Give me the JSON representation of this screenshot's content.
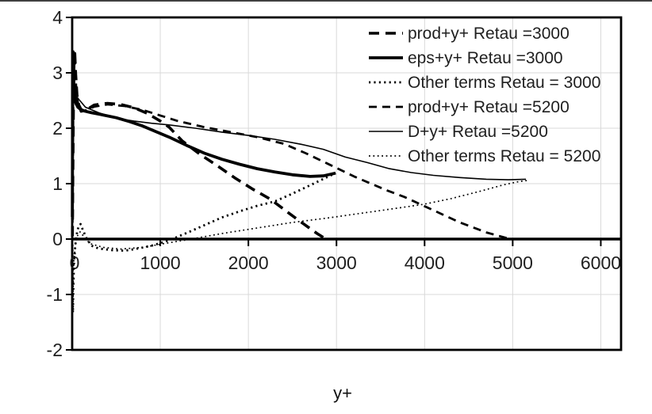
{
  "page": {
    "background": "#ffffff"
  },
  "colors": {
    "line": "#000000",
    "grid": "#d9d9d9",
    "border": "#000000",
    "text": "#1f1f1f"
  },
  "chart_data": {
    "type": "line",
    "title": "",
    "xlabel": "y+",
    "ylabel": "",
    "xlim": [
      0,
      6230
    ],
    "ylim": [
      -2,
      4
    ],
    "x_ticks": [
      0,
      1000,
      2000,
      3000,
      4000,
      5000,
      6000
    ],
    "y_ticks": [
      4,
      3,
      2,
      1,
      0,
      -1,
      -2
    ],
    "grid": true,
    "legend_position": "top-right-inside",
    "series": [
      {
        "name": "prod+y+ Retau =3000",
        "style": "dash-thick",
        "points": [
          [
            3,
            0.05
          ],
          [
            8,
            1.2
          ],
          [
            15,
            2.6
          ],
          [
            22,
            3.25
          ],
          [
            30,
            3.35
          ],
          [
            40,
            2.98
          ],
          [
            55,
            2.6
          ],
          [
            75,
            2.42
          ],
          [
            110,
            2.31
          ],
          [
            160,
            2.33
          ],
          [
            250,
            2.42
          ],
          [
            400,
            2.45
          ],
          [
            550,
            2.43
          ],
          [
            700,
            2.37
          ],
          [
            850,
            2.27
          ],
          [
            1000,
            2.13
          ],
          [
            1100,
            2.02
          ],
          [
            1250,
            1.77
          ],
          [
            1450,
            1.53
          ],
          [
            1650,
            1.32
          ],
          [
            1850,
            1.1
          ],
          [
            2050,
            0.9
          ],
          [
            2250,
            0.72
          ],
          [
            2450,
            0.48
          ],
          [
            2630,
            0.27
          ],
          [
            2780,
            0.1
          ],
          [
            2870,
            0.01
          ]
        ]
      },
      {
        "name": "eps+y+ Retau =3000",
        "style": "solid-thick",
        "points": [
          [
            2,
            0.4
          ],
          [
            4,
            1.6
          ],
          [
            6,
            2.7
          ],
          [
            8,
            3.15
          ],
          [
            10,
            3.38
          ],
          [
            14,
            3.08
          ],
          [
            20,
            2.73
          ],
          [
            30,
            2.53
          ],
          [
            45,
            2.44
          ],
          [
            65,
            2.38
          ],
          [
            95,
            2.34
          ],
          [
            140,
            2.31
          ],
          [
            220,
            2.28
          ],
          [
            350,
            2.24
          ],
          [
            500,
            2.19
          ],
          [
            650,
            2.12
          ],
          [
            800,
            2.04
          ],
          [
            950,
            1.94
          ],
          [
            1100,
            1.84
          ],
          [
            1300,
            1.69
          ],
          [
            1500,
            1.55
          ],
          [
            1700,
            1.44
          ],
          [
            1900,
            1.35
          ],
          [
            2100,
            1.27
          ],
          [
            2300,
            1.21
          ],
          [
            2500,
            1.16
          ],
          [
            2700,
            1.13
          ],
          [
            2850,
            1.14
          ],
          [
            2990,
            1.19
          ]
        ]
      },
      {
        "name": "Other terms Retau = 3000",
        "style": "dot-thick",
        "points": [
          [
            2,
            -0.1
          ],
          [
            5,
            -0.95
          ],
          [
            8,
            -1.33
          ],
          [
            12,
            -1.0
          ],
          [
            20,
            -0.45
          ],
          [
            35,
            -0.12
          ],
          [
            55,
            0.12
          ],
          [
            75,
            0.24
          ],
          [
            95,
            0.27
          ],
          [
            120,
            0.17
          ],
          [
            160,
            0.02
          ],
          [
            220,
            -0.12
          ],
          [
            300,
            -0.17
          ],
          [
            450,
            -0.2
          ],
          [
            600,
            -0.21
          ],
          [
            750,
            -0.17
          ],
          [
            900,
            -0.12
          ],
          [
            1050,
            -0.05
          ],
          [
            1150,
            0.01
          ],
          [
            1300,
            0.11
          ],
          [
            1500,
            0.25
          ],
          [
            1700,
            0.39
          ],
          [
            1900,
            0.5
          ],
          [
            2100,
            0.6
          ],
          [
            2300,
            0.68
          ],
          [
            2500,
            0.82
          ],
          [
            2700,
            0.97
          ],
          [
            2870,
            1.1
          ],
          [
            2990,
            1.19
          ]
        ]
      },
      {
        "name": "prod+y+ Retau =5200",
        "style": "dash-medium",
        "points": [
          [
            3,
            0.05
          ],
          [
            7,
            1.1
          ],
          [
            13,
            2.4
          ],
          [
            20,
            3.05
          ],
          [
            28,
            3.25
          ],
          [
            38,
            2.92
          ],
          [
            52,
            2.58
          ],
          [
            72,
            2.4
          ],
          [
            100,
            2.3
          ],
          [
            150,
            2.32
          ],
          [
            250,
            2.39
          ],
          [
            400,
            2.43
          ],
          [
            600,
            2.4
          ],
          [
            800,
            2.33
          ],
          [
            1000,
            2.23
          ],
          [
            1200,
            2.13
          ],
          [
            1500,
            2.02
          ],
          [
            1800,
            1.93
          ],
          [
            2100,
            1.84
          ],
          [
            2400,
            1.72
          ],
          [
            2650,
            1.55
          ],
          [
            2900,
            1.36
          ],
          [
            3200,
            1.13
          ],
          [
            3570,
            0.88
          ],
          [
            3770,
            0.76
          ],
          [
            4100,
            0.52
          ],
          [
            4400,
            0.3
          ],
          [
            4700,
            0.12
          ],
          [
            4950,
            0.01
          ]
        ]
      },
      {
        "name": "D+y+ Retau =5200",
        "style": "solid-thin",
        "points": [
          [
            60,
            2.55
          ],
          [
            150,
            2.38
          ],
          [
            300,
            2.28
          ],
          [
            500,
            2.18
          ],
          [
            700,
            2.13
          ],
          [
            900,
            2.09
          ],
          [
            1100,
            2.06
          ],
          [
            1400,
            2.0
          ],
          [
            1700,
            1.93
          ],
          [
            2000,
            1.87
          ],
          [
            2300,
            1.8
          ],
          [
            2600,
            1.71
          ],
          [
            2850,
            1.62
          ],
          [
            3100,
            1.48
          ],
          [
            3350,
            1.38
          ],
          [
            3600,
            1.27
          ],
          [
            3850,
            1.2
          ],
          [
            4100,
            1.15
          ],
          [
            4400,
            1.11
          ],
          [
            4700,
            1.08
          ],
          [
            4950,
            1.07
          ],
          [
            5150,
            1.08
          ]
        ]
      },
      {
        "name": "Other terms Retau = 5200",
        "style": "dot-thin",
        "points": [
          [
            2,
            -0.15
          ],
          [
            5,
            -1.0
          ],
          [
            8,
            -1.28
          ],
          [
            12,
            -0.85
          ],
          [
            20,
            -0.4
          ],
          [
            35,
            -0.1
          ],
          [
            60,
            0.06
          ],
          [
            90,
            0.13
          ],
          [
            130,
            0.05
          ],
          [
            200,
            -0.08
          ],
          [
            350,
            -0.15
          ],
          [
            550,
            -0.18
          ],
          [
            800,
            -0.15
          ],
          [
            1050,
            -0.08
          ],
          [
            1350,
            0.0
          ],
          [
            1700,
            0.1
          ],
          [
            2100,
            0.2
          ],
          [
            2500,
            0.3
          ],
          [
            2900,
            0.38
          ],
          [
            3300,
            0.47
          ],
          [
            3700,
            0.56
          ],
          [
            4000,
            0.63
          ],
          [
            4300,
            0.73
          ],
          [
            4600,
            0.85
          ],
          [
            4900,
            0.98
          ],
          [
            5080,
            1.04
          ],
          [
            5180,
            1.06
          ]
        ]
      }
    ]
  }
}
